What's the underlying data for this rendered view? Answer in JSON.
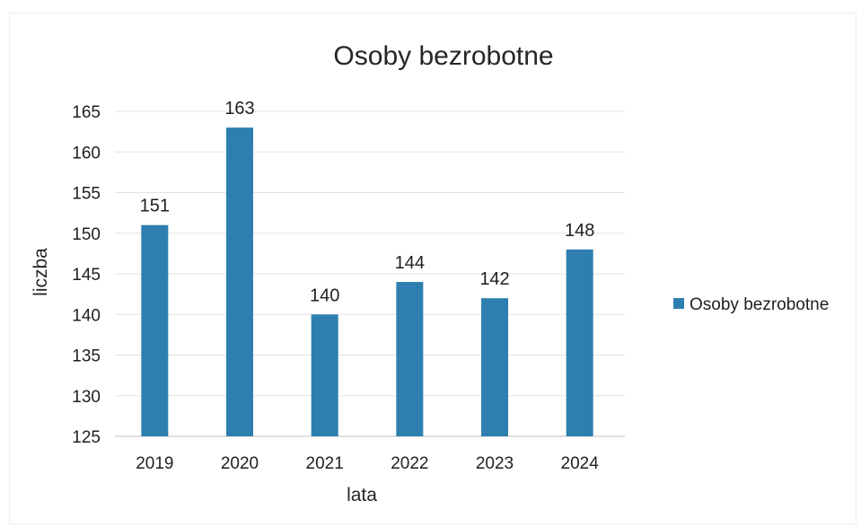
{
  "chart_data": {
    "type": "bar",
    "title": "Osoby bezrobotne",
    "xlabel": "lata",
    "ylabel": "liczba",
    "categories": [
      "2019",
      "2020",
      "2021",
      "2022",
      "2023",
      "2024"
    ],
    "series": [
      {
        "name": "Osoby bezrobotne",
        "values": [
          151,
          163,
          140,
          144,
          142,
          148
        ],
        "color": "#2e7fb0"
      }
    ],
    "ylim": [
      125,
      165
    ],
    "yticks": [
      "125",
      "130",
      "135",
      "140",
      "145",
      "150",
      "155",
      "160",
      "165"
    ],
    "ytick_step": 5,
    "data_labels": [
      "151",
      "163",
      "140",
      "144",
      "142",
      "148"
    ],
    "grid": true,
    "legend_position": "right"
  }
}
